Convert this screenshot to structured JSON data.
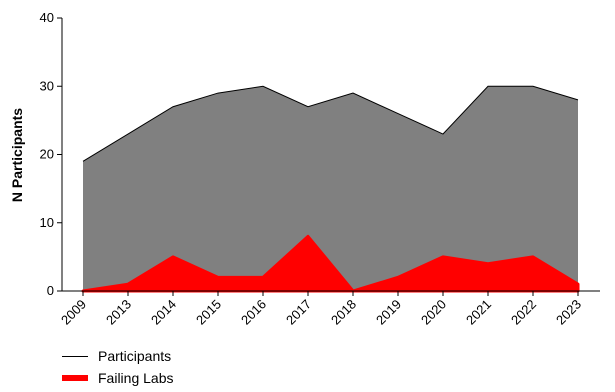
{
  "chart_data": {
    "type": "area",
    "categories": [
      "2009",
      "2013",
      "2014",
      "2015",
      "2016",
      "2017",
      "2018",
      "2019",
      "2020",
      "2021",
      "2022",
      "2023"
    ],
    "series": [
      {
        "name": "Participants",
        "values": [
          19,
          23,
          27,
          29,
          30,
          27,
          29,
          26,
          23,
          30,
          30,
          28
        ],
        "color": "#808080",
        "line_color": "#000000"
      },
      {
        "name": "Failing Labs",
        "values": [
          0,
          1,
          5,
          2,
          2,
          8,
          0,
          2,
          5,
          4,
          5,
          1
        ],
        "color": "#ff0000"
      }
    ],
    "ylabel": "N Participants",
    "ylim": [
      0,
      40
    ],
    "yticks": [
      "0",
      "10",
      "20",
      "30",
      "40"
    ],
    "grid": false,
    "legend_placement": "bottom-left"
  }
}
